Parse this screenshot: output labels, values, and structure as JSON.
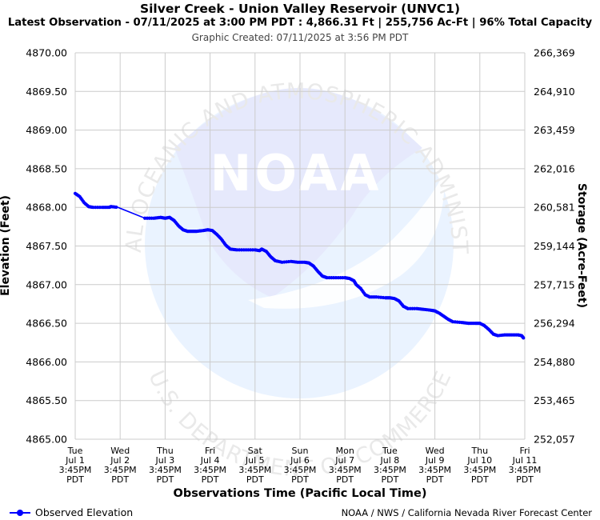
{
  "header": {
    "title": "Silver Creek - Union Valley Reservoir (UNVC1)",
    "subtitle": "Latest Observation - 07/11/2025 at 3:00 PM PDT : 4,866.31 Ft | 255,756 Ac-Ft | 96% Total Capacity",
    "created": "Graphic Created: 07/11/2025 at 3:56 PM PDT"
  },
  "legend": {
    "observed_label": "Observed Elevation"
  },
  "credit": "NOAA / NWS / California Nevada River Forecast Center",
  "watermark": {
    "logo_text": "NOAA",
    "ring_top": "NATIONAL OCEANIC AND ATMOSPHERIC ADMINISTRATION",
    "ring_bottom": "U.S. DEPARTMENT OF COMMERCE",
    "icon": "noaa-logo-icon"
  },
  "chart_data": {
    "type": "line",
    "ylabel": "Elevation (Feet)",
    "y2label": "Storage (Acre-Feet)",
    "xlabel": "Observations Time (Pacific Local Time)",
    "ylim": [
      4865.0,
      4870.0
    ],
    "y_ticks": [
      "4870.00",
      "4869.50",
      "4869.00",
      "4868.50",
      "4868.00",
      "4867.50",
      "4867.00",
      "4866.50",
      "4866.00",
      "4865.50",
      "4865.00"
    ],
    "y2_ticks": [
      "266,369",
      "264,910",
      "263,459",
      "262,016",
      "260,581",
      "259,144",
      "257,715",
      "256,294",
      "254,880",
      "253,465",
      "252,057"
    ],
    "x_range_days": [
      0,
      10
    ],
    "x_ticks": [
      {
        "day": "Tue",
        "date": "Jul 1",
        "time": "3:45PM",
        "tz": "PDT"
      },
      {
        "day": "Wed",
        "date": "Jul 2",
        "time": "3:45PM",
        "tz": "PDT"
      },
      {
        "day": "Thu",
        "date": "Jul 3",
        "time": "3:45PM",
        "tz": "PDT"
      },
      {
        "day": "Fri",
        "date": "Jul 4",
        "time": "3:45PM",
        "tz": "PDT"
      },
      {
        "day": "Sat",
        "date": "Jul 5",
        "time": "3:45PM",
        "tz": "PDT"
      },
      {
        "day": "Sun",
        "date": "Jul 6",
        "time": "3:45PM",
        "tz": "PDT"
      },
      {
        "day": "Mon",
        "date": "Jul 7",
        "time": "3:45PM",
        "tz": "PDT"
      },
      {
        "day": "Tue",
        "date": "Jul 8",
        "time": "3:45PM",
        "tz": "PDT"
      },
      {
        "day": "Wed",
        "date": "Jul 9",
        "time": "3:45PM",
        "tz": "PDT"
      },
      {
        "day": "Thu",
        "date": "Jul 10",
        "time": "3:45PM",
        "tz": "PDT"
      },
      {
        "day": "Fri",
        "date": "Jul 11",
        "time": "3:45PM",
        "tz": "PDT"
      }
    ],
    "grid": true,
    "legend_position": "bottom-left",
    "color": "#0000ff",
    "series": [
      {
        "name": "Observed Elevation",
        "points": [
          [
            0.0,
            4868.18
          ],
          [
            0.1,
            4868.14
          ],
          [
            0.2,
            4868.06
          ],
          [
            0.3,
            4868.01
          ],
          [
            0.4,
            4868.0
          ],
          [
            0.6,
            4868.0
          ],
          [
            0.75,
            4868.0
          ],
          [
            0.8,
            4868.01
          ],
          [
            0.95,
            4868.0
          ],
          [
            1.55,
            4867.86
          ],
          [
            1.75,
            4867.86
          ],
          [
            1.9,
            4867.87
          ],
          [
            2.0,
            4867.86
          ],
          [
            2.1,
            4867.87
          ],
          [
            2.2,
            4867.83
          ],
          [
            2.3,
            4867.76
          ],
          [
            2.4,
            4867.71
          ],
          [
            2.5,
            4867.69
          ],
          [
            2.6,
            4867.69
          ],
          [
            2.7,
            4867.69
          ],
          [
            2.85,
            4867.7
          ],
          [
            2.95,
            4867.71
          ],
          [
            3.05,
            4867.7
          ],
          [
            3.15,
            4867.65
          ],
          [
            3.25,
            4867.59
          ],
          [
            3.35,
            4867.51
          ],
          [
            3.45,
            4867.46
          ],
          [
            3.6,
            4867.45
          ],
          [
            3.8,
            4867.45
          ],
          [
            4.0,
            4867.45
          ],
          [
            4.1,
            4867.44
          ],
          [
            4.15,
            4867.46
          ],
          [
            4.25,
            4867.43
          ],
          [
            4.35,
            4867.36
          ],
          [
            4.45,
            4867.31
          ],
          [
            4.6,
            4867.29
          ],
          [
            4.8,
            4867.3
          ],
          [
            4.95,
            4867.29
          ],
          [
            5.1,
            4867.29
          ],
          [
            5.2,
            4867.28
          ],
          [
            5.3,
            4867.24
          ],
          [
            5.4,
            4867.17
          ],
          [
            5.5,
            4867.11
          ],
          [
            5.6,
            4867.09
          ],
          [
            5.8,
            4867.09
          ],
          [
            6.0,
            4867.09
          ],
          [
            6.1,
            4867.08
          ],
          [
            6.2,
            4867.05
          ],
          [
            6.25,
            4867.0
          ],
          [
            6.35,
            4866.95
          ],
          [
            6.45,
            4866.87
          ],
          [
            6.55,
            4866.84
          ],
          [
            6.7,
            4866.84
          ],
          [
            6.9,
            4866.83
          ],
          [
            7.0,
            4866.83
          ],
          [
            7.1,
            4866.82
          ],
          [
            7.2,
            4866.79
          ],
          [
            7.3,
            4866.72
          ],
          [
            7.4,
            4866.69
          ],
          [
            7.6,
            4866.69
          ],
          [
            7.75,
            4866.68
          ],
          [
            7.9,
            4866.67
          ],
          [
            8.0,
            4866.66
          ],
          [
            8.1,
            4866.63
          ],
          [
            8.2,
            4866.59
          ],
          [
            8.3,
            4866.55
          ],
          [
            8.4,
            4866.52
          ],
          [
            8.6,
            4866.51
          ],
          [
            8.75,
            4866.5
          ],
          [
            8.9,
            4866.5
          ],
          [
            9.0,
            4866.5
          ],
          [
            9.1,
            4866.47
          ],
          [
            9.2,
            4866.42
          ],
          [
            9.3,
            4866.36
          ],
          [
            9.4,
            4866.34
          ],
          [
            9.55,
            4866.35
          ],
          [
            9.7,
            4866.35
          ],
          [
            9.85,
            4866.35
          ],
          [
            9.93,
            4866.34
          ],
          [
            9.97,
            4866.31
          ]
        ]
      }
    ]
  }
}
